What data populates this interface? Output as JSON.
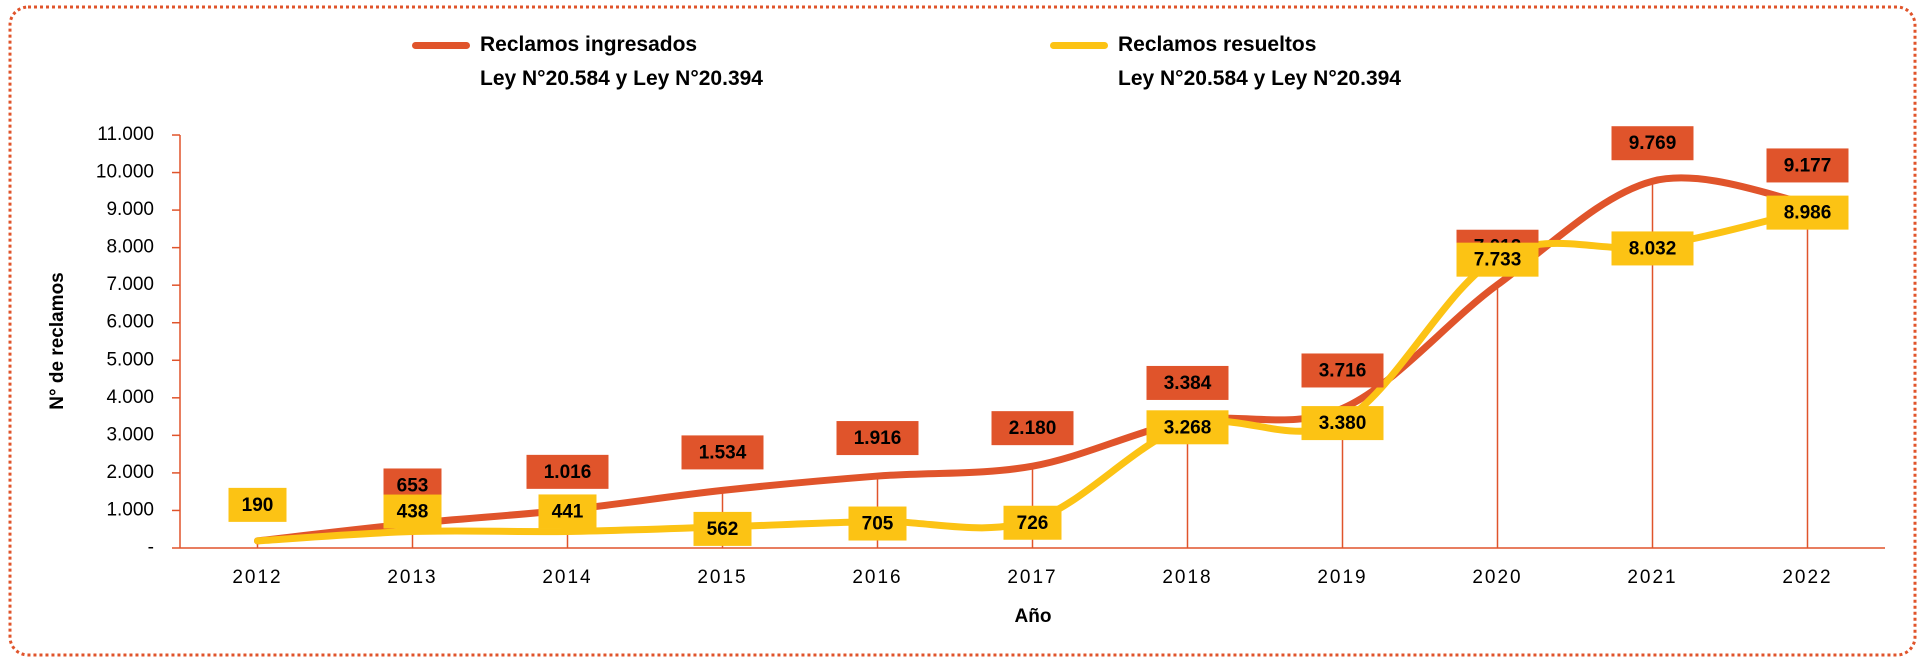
{
  "chart_data": {
    "type": "line",
    "xlabel": "Año",
    "ylabel": "N° de reclamos",
    "categories": [
      "2012",
      "2013",
      "2014",
      "2015",
      "2016",
      "2017",
      "2018",
      "2019",
      "2020",
      "2021",
      "2022"
    ],
    "series": [
      {
        "name": "Reclamos ingresados\nLey N°20.584 y Ley N°20.394",
        "color": "#e0542b",
        "values": [
          190,
          653,
          1016,
          1534,
          1916,
          2180,
          3384,
          3716,
          7012,
          9769,
          9177
        ],
        "value_labels": [
          null,
          "653",
          "1.016",
          "1.534",
          "1.916",
          "2.180",
          "3.384",
          "3.716",
          "7.012",
          "9.769",
          "9.177"
        ]
      },
      {
        "name": "Reclamos resueltos\nLey N°20.584 y Ley N°20.394",
        "color": "#fcc314",
        "values": [
          190,
          438,
          441,
          562,
          705,
          726,
          3268,
          3380,
          7733,
          8032,
          8986
        ],
        "value_labels": [
          "190",
          "438",
          "441",
          "562",
          "705",
          "726",
          "3.268",
          "3.380",
          "7.733",
          "8.032",
          "8.986"
        ]
      }
    ],
    "ylim": [
      0,
      11000
    ],
    "yticks": [
      {
        "value": 0,
        "label": "-"
      },
      {
        "value": 1000,
        "label": "1.000"
      },
      {
        "value": 2000,
        "label": "2.000"
      },
      {
        "value": 3000,
        "label": "3.000"
      },
      {
        "value": 4000,
        "label": "4.000"
      },
      {
        "value": 5000,
        "label": "5.000"
      },
      {
        "value": 6000,
        "label": "6.000"
      },
      {
        "value": 7000,
        "label": "7.000"
      },
      {
        "value": 8000,
        "label": "8.000"
      },
      {
        "value": 9000,
        "label": "9.000"
      },
      {
        "value": 10000,
        "label": "10.000"
      },
      {
        "value": 11000,
        "label": "11.000"
      }
    ],
    "grid": false,
    "legend": "top"
  }
}
